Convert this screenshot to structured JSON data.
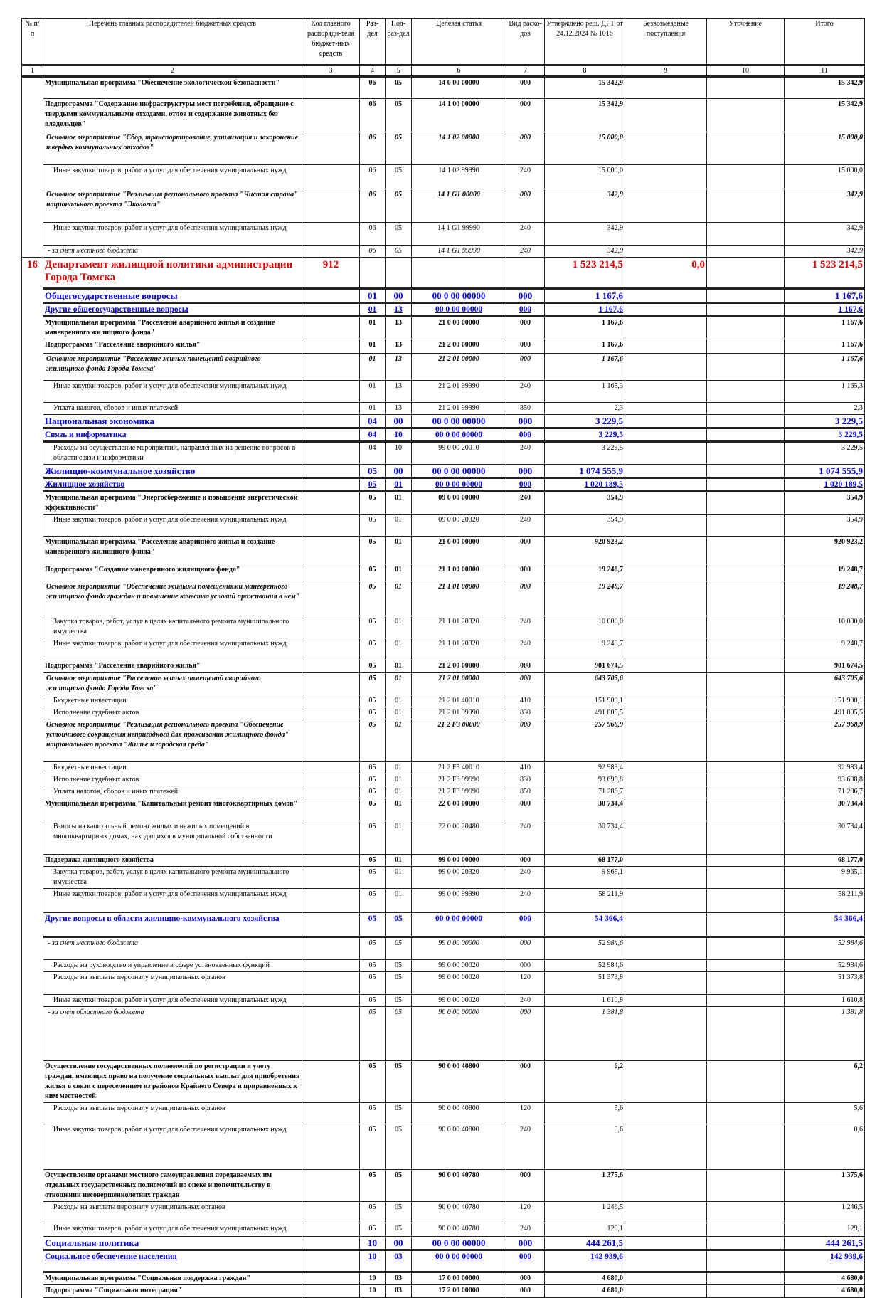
{
  "header": {
    "columns": [
      "№ п/п",
      "Перечень главных распорядителей бюджетных средств",
      "Код главного распоряди-теля бюджет-ных средств",
      "Раз-дел",
      "Под-раз-дел",
      "Целевая статья",
      "Вид расхо-дов",
      "Утверждено реш. ДГТ от 24.12.2024 № 1016",
      "Безвозмездные поступления",
      "Уточнение",
      "Итого"
    ],
    "numbers": [
      "1",
      "2",
      "3",
      "4",
      "5",
      "6",
      "7",
      "8",
      "9",
      "10",
      "11"
    ]
  },
  "rows": [
    {
      "s": "b",
      "t": "Муниципальная программа \"Обеспечение экологической безопасности\"",
      "r": "06",
      "p": "05",
      "c": "14 0 00 00000",
      "v": "000",
      "a": "15 342,9",
      "i": "15 342,9"
    },
    {
      "s": "b",
      "t": "Подпрограмма \"Содержание инфраструктуры мест погребения, обращение с твердыми коммунальными отходами, отлов и содержание животных без владельцев\"",
      "r": "06",
      "p": "05",
      "c": "14 1 00 00000",
      "v": "000",
      "a": "15 342,9",
      "i": "15 342,9"
    },
    {
      "s": "i",
      "t": "Основное мероприятие \"Сбор, транспортирование, утилизация и захоронение твердых коммунальных отходов\"",
      "r": "06",
      "p": "05",
      "c": "14 1 02 00000",
      "v": "000",
      "a": "15 000,0",
      "i": "15 000,0"
    },
    {
      "s": "n",
      "t": "Иные закупки товаров, работ и услуг для обеспечения муниципальных нужд",
      "r": "06",
      "p": "05",
      "c": "14 1 02 99990",
      "v": "240",
      "a": "15 000,0",
      "i": "15 000,0"
    },
    {
      "s": "i",
      "t": "Основное мероприятие \"Реализация регионального проекта \"Чистая страна\" национального проекта \"Экология\"",
      "r": "06",
      "p": "05",
      "c": "14 1 G1 00000",
      "v": "000",
      "a": "342,9",
      "i": "342,9"
    },
    {
      "s": "n",
      "t": "Иные закупки товаров, работ и услуг для обеспечения муниципальных нужд",
      "r": "06",
      "p": "05",
      "c": "14 1 G1 99990",
      "v": "240",
      "a": "342,9",
      "i": "342,9"
    },
    {
      "s": "note",
      "t": "- за счет местного бюджета",
      "r": "06",
      "p": "05",
      "c": "14 1 G1 99990",
      "v": "240",
      "a": "342,9",
      "i": "342,9"
    },
    {
      "s": "dept",
      "num": "16",
      "t": "Департамент жилищной политики администрации Города Томска",
      "k": "912",
      "a": "1 523 214,5",
      "f": "0,0",
      "i": "1 523 214,5"
    },
    {
      "s": "sec",
      "t": "Общегосударственные вопросы",
      "r": "01",
      "p": "00",
      "c": "00 0 00 00000",
      "v": "000",
      "a": "1 167,6",
      "i": "1 167,6"
    },
    {
      "s": "sub",
      "t": "Другие общегосударственные вопросы",
      "r": "01",
      "p": "13",
      "c": "00 0 00 00000",
      "v": "000",
      "a": "1 167,6",
      "i": "1 167,6"
    },
    {
      "s": "b",
      "t": "Муниципальная программа \"Расселение аварийного жилья и создание маневренного жилищного фонда\"",
      "r": "01",
      "p": "13",
      "c": "21 0 00 00000",
      "v": "000",
      "a": "1 167,6",
      "i": "1 167,6"
    },
    {
      "s": "b",
      "t": "Подпрограмма \"Расселение аварийного жилья\"",
      "r": "01",
      "p": "13",
      "c": "21 2 00 00000",
      "v": "000",
      "a": "1 167,6",
      "i": "1 167,6"
    },
    {
      "s": "i",
      "t": "Основное мероприятие \"Расселение жилых помещений аварийного жилищного фонда Города Томска\"",
      "r": "01",
      "p": "13",
      "c": "21 2 01 00000",
      "v": "000",
      "a": "1 167,6",
      "i": "1 167,6"
    },
    {
      "s": "n",
      "t": "Иные закупки товаров, работ и услуг для обеспечения муниципальных нужд",
      "r": "01",
      "p": "13",
      "c": "21 2 01 99990",
      "v": "240",
      "a": "1 165,3",
      "i": "1 165,3"
    },
    {
      "s": "n",
      "t": "Уплата налогов, сборов и иных платежей",
      "r": "01",
      "p": "13",
      "c": "21 2 01 99990",
      "v": "850",
      "a": "2,3",
      "i": "2,3"
    },
    {
      "s": "sec",
      "t": "Национальная экономика",
      "r": "04",
      "p": "00",
      "c": "00 0 00 00000",
      "v": "000",
      "a": "3 229,5",
      "i": "3 229,5"
    },
    {
      "s": "sub",
      "t": "Связь и информатика",
      "r": "04",
      "p": "10",
      "c": "00 0 00 00000",
      "v": "000",
      "a": "3 229,5",
      "i": "3 229,5"
    },
    {
      "s": "n",
      "t": "Расходы на осуществление мероприятий, направленных на решение вопросов в области связи и информатики",
      "r": "04",
      "p": "10",
      "c": "99 0 00 20010",
      "v": "240",
      "a": "3 229,5",
      "i": "3 229,5"
    },
    {
      "s": "sec",
      "t": "Жилищно-коммунальное хозяйство",
      "r": "05",
      "p": "00",
      "c": "00 0 00 00000",
      "v": "000",
      "a": "1 074 555,9",
      "i": "1 074 555,9"
    },
    {
      "s": "sub",
      "t": "Жилищное хозяйство",
      "r": "05",
      "p": "01",
      "c": "00 0 00 00000",
      "v": "000",
      "a": "1 020 189,5",
      "i": "1 020 189,5"
    },
    {
      "s": "b",
      "t": "Муниципальная программа \"Энергосбережение и повышение энергетической эффективности\"",
      "r": "05",
      "p": "01",
      "c": "09 0 00 00000",
      "v": "240",
      "a": "354,9",
      "i": "354,9"
    },
    {
      "s": "n",
      "t": "Иные закупки товаров, работ и услуг для обеспечения муниципальных нужд",
      "r": "05",
      "p": "01",
      "c": "09 0 00 20320",
      "v": "240",
      "a": "354,9",
      "i": "354,9"
    },
    {
      "s": "b",
      "t": "Муниципальная программа \"Расселение аварийного жилья и создание маневренного жилищного фонда\"",
      "r": "05",
      "p": "01",
      "c": "21 0 00 00000",
      "v": "000",
      "a": "920 923,2",
      "i": "920 923,2"
    },
    {
      "s": "b",
      "t": "Подпрограмма \"Создание маневренного жилищного фонда\"",
      "r": "05",
      "p": "01",
      "c": "21 1 00 00000",
      "v": "000",
      "a": "19 248,7",
      "i": "19 248,7"
    },
    {
      "s": "i",
      "t": "Основное мероприятие \"Обеспечение жилыми помещениями маневренного жилищного фонда граждан и повышение качества условий проживания в нем\"",
      "r": "05",
      "p": "01",
      "c": "21 1 01 00000",
      "v": "000",
      "a": "19 248,7",
      "i": "19 248,7"
    },
    {
      "s": "n",
      "t": "Закупка товаров, работ, услуг в целях капитального ремонта муниципального имущества",
      "r": "05",
      "p": "01",
      "c": "21 1 01 20320",
      "v": "240",
      "a": "10 000,0",
      "i": "10 000,0"
    },
    {
      "s": "n",
      "t": "Иные закупки товаров, работ и услуг для обеспечения муниципальных нужд",
      "r": "05",
      "p": "01",
      "c": "21 1 01 20320",
      "v": "240",
      "a": "9 248,7",
      "i": "9 248,7"
    },
    {
      "s": "b",
      "t": "Подпрограмма \"Расселение аварийного жилья\"",
      "r": "05",
      "p": "01",
      "c": "21 2 00 00000",
      "v": "000",
      "a": "901 674,5",
      "i": "901 674,5"
    },
    {
      "s": "i",
      "t": "Основное мероприятие \"Расселение жилых помещений аварийного жилищного фонда Города Томска\"",
      "r": "05",
      "p": "01",
      "c": "21 2 01 00000",
      "v": "000",
      "a": "643 705,6",
      "i": "643 705,6"
    },
    {
      "s": "n",
      "t": "Бюджетные инвестиции",
      "r": "05",
      "p": "01",
      "c": "21 2 01 40010",
      "v": "410",
      "a": "151 900,1",
      "i": "151 900,1"
    },
    {
      "s": "n",
      "t": "Исполнение судебных актов",
      "r": "05",
      "p": "01",
      "c": "21 2 01 99990",
      "v": "830",
      "a": "491 805,5",
      "i": "491 805,5"
    },
    {
      "s": "i",
      "t": "Основное мероприятие \"Реализация регионального проекта \"Обеспечение устойчивого сокращения непригодного для проживания жилищного фонда\" национального проекта \"Жилье и городская среда\"",
      "r": "05",
      "p": "01",
      "c": "21 2 F3 00000",
      "v": "000",
      "a": "257 968,9",
      "i": "257 968,9"
    },
    {
      "s": "n",
      "t": "Бюджетные инвестиции",
      "r": "05",
      "p": "01",
      "c": "21 2 F3 40010",
      "v": "410",
      "a": "92 983,4",
      "i": "92 983,4"
    },
    {
      "s": "n",
      "t": "Исполнение судебных актов",
      "r": "05",
      "p": "01",
      "c": "21 2 F3 99990",
      "v": "830",
      "a": "93 698,8",
      "i": "93 698,8"
    },
    {
      "s": "n",
      "t": "Уплата налогов, сборов и иных платежей",
      "r": "05",
      "p": "01",
      "c": "21 2 F3 99990",
      "v": "850",
      "a": "71 286,7",
      "i": "71 286,7"
    },
    {
      "s": "b",
      "t": "Муниципальная программа \"Капитальный ремонт многоквартирных домов\"",
      "r": "05",
      "p": "01",
      "c": "22 0 00 00000",
      "v": "000",
      "a": "30 734,4",
      "i": "30 734,4"
    },
    {
      "s": "n",
      "t": "Взносы на капитальный ремонт жилых и нежилых помещений в многоквартирных домах, находящихся в муниципальной собственности",
      "r": "05",
      "p": "01",
      "c": "22 0 00 20480",
      "v": "240",
      "a": "30 734,4",
      "i": "30 734,4"
    },
    {
      "s": "b",
      "t": "Поддержка жилищного хозяйства",
      "r": "05",
      "p": "01",
      "c": "99 0 00 00000",
      "v": "000",
      "a": "68 177,0",
      "i": "68 177,0"
    },
    {
      "s": "n",
      "t": "Закупка товаров, работ, услуг в целях капитального ремонта муниципального имущества",
      "r": "05",
      "p": "01",
      "c": "99 0 00 20320",
      "v": "240",
      "a": "9 965,1",
      "i": "9 965,1"
    },
    {
      "s": "n",
      "t": "Иные закупки товаров, работ и услуг для обеспечения муниципальных нужд",
      "r": "05",
      "p": "01",
      "c": "99 0 00 99990",
      "v": "240",
      "a": "58 211,9",
      "i": "58 211,9"
    },
    {
      "s": "sub2",
      "t": "Другие вопросы в области жилищно-коммунального хозяйства",
      "r": "05",
      "p": "05",
      "c": "00 0 00 00000",
      "v": "000",
      "a": "54 366,4",
      "i": "54 366,4"
    },
    {
      "s": "note",
      "t": "- за счет местного бюджета",
      "r": "05",
      "p": "05",
      "c": "99 0 00 00000",
      "v": "000",
      "a": "52 984,6",
      "i": "52 984,6"
    },
    {
      "s": "n",
      "t": "Расходы на руководство и управление в сфере установленных функций",
      "r": "05",
      "p": "05",
      "c": "99 0 00 00020",
      "v": "000",
      "a": "52 984,6",
      "i": "52 984,6"
    },
    {
      "s": "n",
      "t": "Расходы на выплаты персоналу муниципальных органов",
      "r": "05",
      "p": "05",
      "c": "99 0 00 00020",
      "v": "120",
      "a": "51 373,8",
      "i": "51 373,8"
    },
    {
      "s": "n",
      "t": "Иные закупки товаров, работ и услуг для обеспечения муниципальных нужд",
      "r": "05",
      "p": "05",
      "c": "99 0 00 00020",
      "v": "240",
      "a": "1 610,8",
      "i": "1 610,8"
    },
    {
      "s": "note",
      "t": "- за счет областного бюджета",
      "r": "05",
      "p": "05",
      "c": "90 0 00 00000",
      "v": "000",
      "a": "1 381,8",
      "i": "1 381,8"
    },
    {
      "s": "b",
      "t": "Осуществление государственных полномочий по регистрации и учету граждан, имеющих право на получение социальных выплат для приобретения жилья в связи с переселением из районов Крайнего Севера и приравненных к ним местностей",
      "r": "05",
      "p": "05",
      "c": "90 0 00 40800",
      "v": "000",
      "a": "6,2",
      "i": "6,2"
    },
    {
      "s": "n",
      "t": "Расходы на выплаты персоналу муниципальных органов",
      "r": "05",
      "p": "05",
      "c": "90 0 00 40800",
      "v": "120",
      "a": "5,6",
      "i": "5,6"
    },
    {
      "s": "n",
      "t": "Иные закупки товаров, работ и услуг для обеспечения муниципальных нужд",
      "r": "05",
      "p": "05",
      "c": "90 0 00 40800",
      "v": "240",
      "a": "0,6",
      "i": "0,6"
    },
    {
      "s": "b",
      "t": "Осуществление органами местного самоуправления передаваемых им отдельных государственных полномочий по опеке и попечительству в отношении несовершеннолетних граждан",
      "r": "05",
      "p": "05",
      "c": "90 0 00 40780",
      "v": "000",
      "a": "1 375,6",
      "i": "1 375,6"
    },
    {
      "s": "n",
      "t": "Расходы на выплаты персоналу муниципальных органов",
      "r": "05",
      "p": "05",
      "c": "90 0 00 40780",
      "v": "120",
      "a": "1 246,5",
      "i": "1 246,5"
    },
    {
      "s": "n",
      "t": "Иные закупки товаров, работ и услуг для обеспечения муниципальных нужд",
      "r": "05",
      "p": "05",
      "c": "90 0 00 40780",
      "v": "240",
      "a": "129,1",
      "i": "129,1"
    },
    {
      "s": "sec",
      "t": "Социальная политика",
      "r": "10",
      "p": "00",
      "c": "00 0 00 00000",
      "v": "000",
      "a": "444 261,5",
      "i": "444 261,5"
    },
    {
      "s": "sub",
      "t": "Социальное обеспечение населения",
      "r": "10",
      "p": "03",
      "c": "00 0 00 00000",
      "v": "000",
      "a": "142 939,6",
      "i": "142 939,6"
    },
    {
      "s": "b",
      "t": "Муниципальная программа \"Социальная поддержка граждан\"",
      "r": "10",
      "p": "03",
      "c": "17 0 00 00000",
      "v": "000",
      "a": "4 680,0",
      "i": "4 680,0"
    },
    {
      "s": "b",
      "t": "Подпрограмма \"Социальная интеграция\"",
      "r": "10",
      "p": "03",
      "c": "17 2 00 00000",
      "v": "000",
      "a": "4 680,0",
      "i": "4 680,0"
    }
  ]
}
